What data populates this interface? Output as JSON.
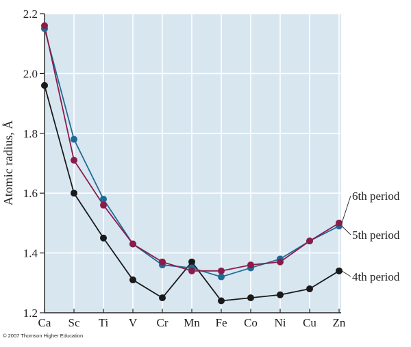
{
  "credit": "© 2007 Thomson Higher Education",
  "chart_data": {
    "type": "line",
    "ylabel": "Atomic radius, Å",
    "xlabel": "",
    "categories": [
      "Ca",
      "Sc",
      "Ti",
      "V",
      "Cr",
      "Mn",
      "Fe",
      "Co",
      "Ni",
      "Cu",
      "Zn"
    ],
    "ylim": [
      1.2,
      2.2
    ],
    "yticks": [
      "1.2",
      "1.4",
      "1.6",
      "1.8",
      "2.0",
      "2.2"
    ],
    "grid": true,
    "plot_background": "#d8e6f0",
    "grid_color": "#ffffff",
    "series": [
      {
        "name": "4th period",
        "color": "#1a1a1a",
        "values": [
          1.96,
          1.6,
          1.45,
          1.31,
          1.25,
          1.37,
          1.24,
          1.25,
          1.26,
          1.28,
          1.34
        ]
      },
      {
        "name": "5th period",
        "color": "#1f6a96",
        "values": [
          2.15,
          1.78,
          1.58,
          1.43,
          1.36,
          1.35,
          1.32,
          1.35,
          1.38,
          1.44,
          1.49
        ]
      },
      {
        "name": "6th period",
        "color": "#8a1c4a",
        "values": [
          2.16,
          1.71,
          1.56,
          1.43,
          1.37,
          1.34,
          1.34,
          1.36,
          1.37,
          1.44,
          1.5
        ]
      }
    ]
  }
}
